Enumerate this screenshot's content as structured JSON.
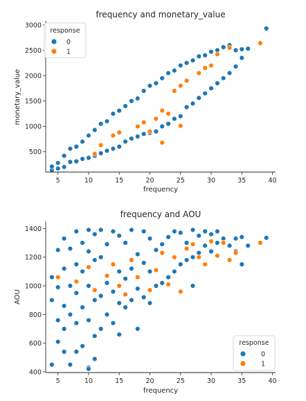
{
  "colors": {
    "0": "#1f77b4",
    "1": "#ff7f0e",
    "axis": "#262626",
    "marker_edge": "#ffffff"
  },
  "chart_data": [
    {
      "type": "scatter",
      "title": "frequency and monetary_value",
      "xlabel": "frequency",
      "ylabel": "monetary_value",
      "xlim": [
        3,
        40.5
      ],
      "ylim": [
        100,
        3080
      ],
      "xticks": [
        5,
        10,
        15,
        20,
        25,
        30,
        35,
        40
      ],
      "yticks": [
        500,
        1000,
        1500,
        2000,
        2500,
        3000
      ],
      "grid": false,
      "legend": {
        "title": "response",
        "placement": "top-left"
      },
      "series": [
        {
          "name": "0",
          "points": [
            [
              4,
              140
            ],
            [
              4,
              210
            ],
            [
              5,
              170
            ],
            [
              5,
              280
            ],
            [
              6,
              200
            ],
            [
              6,
              420
            ],
            [
              7,
              300
            ],
            [
              7,
              560
            ],
            [
              8,
              310
            ],
            [
              8,
              600
            ],
            [
              9,
              360
            ],
            [
              9,
              700
            ],
            [
              10,
              380
            ],
            [
              10,
              820
            ],
            [
              11,
              420
            ],
            [
              11,
              930
            ],
            [
              12,
              470
            ],
            [
              12,
              1050
            ],
            [
              13,
              520
            ],
            [
              13,
              1100
            ],
            [
              14,
              560
            ],
            [
              14,
              1250
            ],
            [
              15,
              600
            ],
            [
              15,
              1310
            ],
            [
              16,
              700
            ],
            [
              16,
              1400
            ],
            [
              17,
              760
            ],
            [
              17,
              1500
            ],
            [
              18,
              800
            ],
            [
              18,
              1550
            ],
            [
              19,
              850
            ],
            [
              19,
              1700
            ],
            [
              20,
              870
            ],
            [
              20,
              1800
            ],
            [
              21,
              900
            ],
            [
              21,
              1850
            ],
            [
              22,
              1000
            ],
            [
              22,
              1950
            ],
            [
              23,
              1050
            ],
            [
              23,
              2050
            ],
            [
              24,
              1150
            ],
            [
              24,
              2100
            ],
            [
              25,
              1200
            ],
            [
              25,
              2200
            ],
            [
              26,
              1380
            ],
            [
              26,
              2250
            ],
            [
              27,
              1450
            ],
            [
              27,
              2300
            ],
            [
              28,
              1560
            ],
            [
              28,
              2380
            ],
            [
              29,
              1650
            ],
            [
              29,
              2400
            ],
            [
              30,
              1750
            ],
            [
              30,
              2470
            ],
            [
              31,
              1850
            ],
            [
              31,
              2500
            ],
            [
              32,
              1950
            ],
            [
              32,
              2560
            ],
            [
              33,
              2050
            ],
            [
              33,
              2600
            ],
            [
              34,
              2180
            ],
            [
              34,
              2500
            ],
            [
              35,
              2350
            ],
            [
              35,
              2520
            ],
            [
              36,
              2530
            ],
            [
              39,
              2930
            ]
          ]
        },
        {
          "name": "1",
          "points": [
            [
              11,
              460
            ],
            [
              12,
              630
            ],
            [
              14,
              820
            ],
            [
              15,
              880
            ],
            [
              18,
              1000
            ],
            [
              19,
              1080
            ],
            [
              20,
              900
            ],
            [
              21,
              1150
            ],
            [
              22,
              680
            ],
            [
              22,
              1310
            ],
            [
              23,
              1250
            ],
            [
              24,
              1700
            ],
            [
              25,
              1010
            ],
            [
              25,
              1800
            ],
            [
              26,
              1900
            ],
            [
              28,
              2050
            ],
            [
              29,
              2150
            ],
            [
              30,
              2200
            ],
            [
              31,
              2420
            ],
            [
              33,
              2550
            ],
            [
              38,
              2640
            ]
          ]
        }
      ]
    },
    {
      "type": "scatter",
      "title": "frequency and AOU",
      "xlabel": "frequency",
      "ylabel": "AOU",
      "xlim": [
        3,
        40.5
      ],
      "ylim": [
        395,
        1450
      ],
      "xticks": [
        5,
        10,
        15,
        20,
        25,
        30,
        35,
        40
      ],
      "yticks": [
        400,
        600,
        800,
        1000,
        1200,
        1400
      ],
      "grid": false,
      "legend": {
        "title": "response",
        "placement": "bottom-right"
      },
      "series": [
        {
          "name": "0",
          "points": [
            [
              4,
              450
            ],
            [
              4,
              900
            ],
            [
              4,
              1060
            ],
            [
              5,
              610
            ],
            [
              5,
              760
            ],
            [
              5,
              990
            ],
            [
              5,
              1250
            ],
            [
              6,
              540
            ],
            [
              6,
              700
            ],
            [
              6,
              860
            ],
            [
              6,
              1120
            ],
            [
              6,
              1330
            ],
            [
              7,
              450
            ],
            [
              7,
              800
            ],
            [
              7,
              1000
            ],
            [
              7,
              1260
            ],
            [
              8,
              540
            ],
            [
              8,
              740
            ],
            [
              8,
              950
            ],
            [
              8,
              1150
            ],
            [
              8,
              1380
            ],
            [
              9,
              580
            ],
            [
              9,
              850
            ],
            [
              9,
              1100
            ],
            [
              9,
              1300
            ],
            [
              10,
              430
            ],
            [
              10,
              420
            ],
            [
              10,
              760
            ],
            [
              10,
              1000
            ],
            [
              10,
              1240
            ],
            [
              10,
              1390
            ],
            [
              11,
              490
            ],
            [
              11,
              650
            ],
            [
              11,
              900
            ],
            [
              11,
              1180
            ],
            [
              11,
              1360
            ],
            [
              12,
              700
            ],
            [
              12,
              930
            ],
            [
              12,
              1200
            ],
            [
              12,
              1390
            ],
            [
              13,
              800
            ],
            [
              13,
              1020
            ],
            [
              13,
              1290
            ],
            [
              14,
              740
            ],
            [
              14,
              960
            ],
            [
              14,
              1150
            ],
            [
              14,
              1380
            ],
            [
              15,
              660
            ],
            [
              15,
              880
            ],
            [
              15,
              1100
            ],
            [
              15,
              1350
            ],
            [
              16,
              850
            ],
            [
              16,
              1050
            ],
            [
              16,
              1300
            ],
            [
              17,
              900
            ],
            [
              17,
              1120
            ],
            [
              17,
              1390
            ],
            [
              18,
              700
            ],
            [
              18,
              980
            ],
            [
              18,
              1220
            ],
            [
              19,
              920
            ],
            [
              19,
              1160
            ],
            [
              19,
              1380
            ],
            [
              20,
              880
            ],
            [
              20,
              1100
            ],
            [
              20,
              1330
            ],
            [
              21,
              1000
            ],
            [
              21,
              1250
            ],
            [
              22,
              1020
            ],
            [
              22,
              1290
            ],
            [
              23,
              1060
            ],
            [
              23,
              1340
            ],
            [
              24,
              1100
            ],
            [
              24,
              1380
            ],
            [
              25,
              1150
            ],
            [
              25,
              1370
            ],
            [
              26,
              1180
            ],
            [
              26,
              1300
            ],
            [
              27,
              1000
            ],
            [
              27,
              1200
            ],
            [
              27,
              1390
            ],
            [
              28,
              1230
            ],
            [
              28,
              1350
            ],
            [
              29,
              1280
            ],
            [
              29,
              1380
            ],
            [
              30,
              1240
            ],
            [
              30,
              1360
            ],
            [
              31,
              1300
            ],
            [
              31,
              1380
            ],
            [
              32,
              1330
            ],
            [
              33,
              1280
            ],
            [
              34,
              1240
            ],
            [
              34,
              1330
            ],
            [
              35,
              1150
            ],
            [
              35,
              1340
            ],
            [
              36,
              1280
            ],
            [
              39,
              1335
            ]
          ]
        },
        {
          "name": "1",
          "points": [
            [
              5,
              1060
            ],
            [
              8,
              1030
            ],
            [
              10,
              1130
            ],
            [
              11,
              970
            ],
            [
              13,
              1070
            ],
            [
              14,
              1150
            ],
            [
              15,
              1000
            ],
            [
              16,
              940
            ],
            [
              17,
              1180
            ],
            [
              18,
              1060
            ],
            [
              20,
              970
            ],
            [
              21,
              1110
            ],
            [
              22,
              1230
            ],
            [
              23,
              1010
            ],
            [
              24,
              1200
            ],
            [
              25,
              960
            ],
            [
              26,
              1260
            ],
            [
              27,
              1290
            ],
            [
              28,
              1200
            ],
            [
              29,
              1150
            ],
            [
              30,
              1310
            ],
            [
              31,
              1210
            ],
            [
              32,
              1300
            ],
            [
              33,
              1180
            ],
            [
              34,
              1230
            ],
            [
              38,
              1300
            ]
          ]
        }
      ]
    }
  ]
}
